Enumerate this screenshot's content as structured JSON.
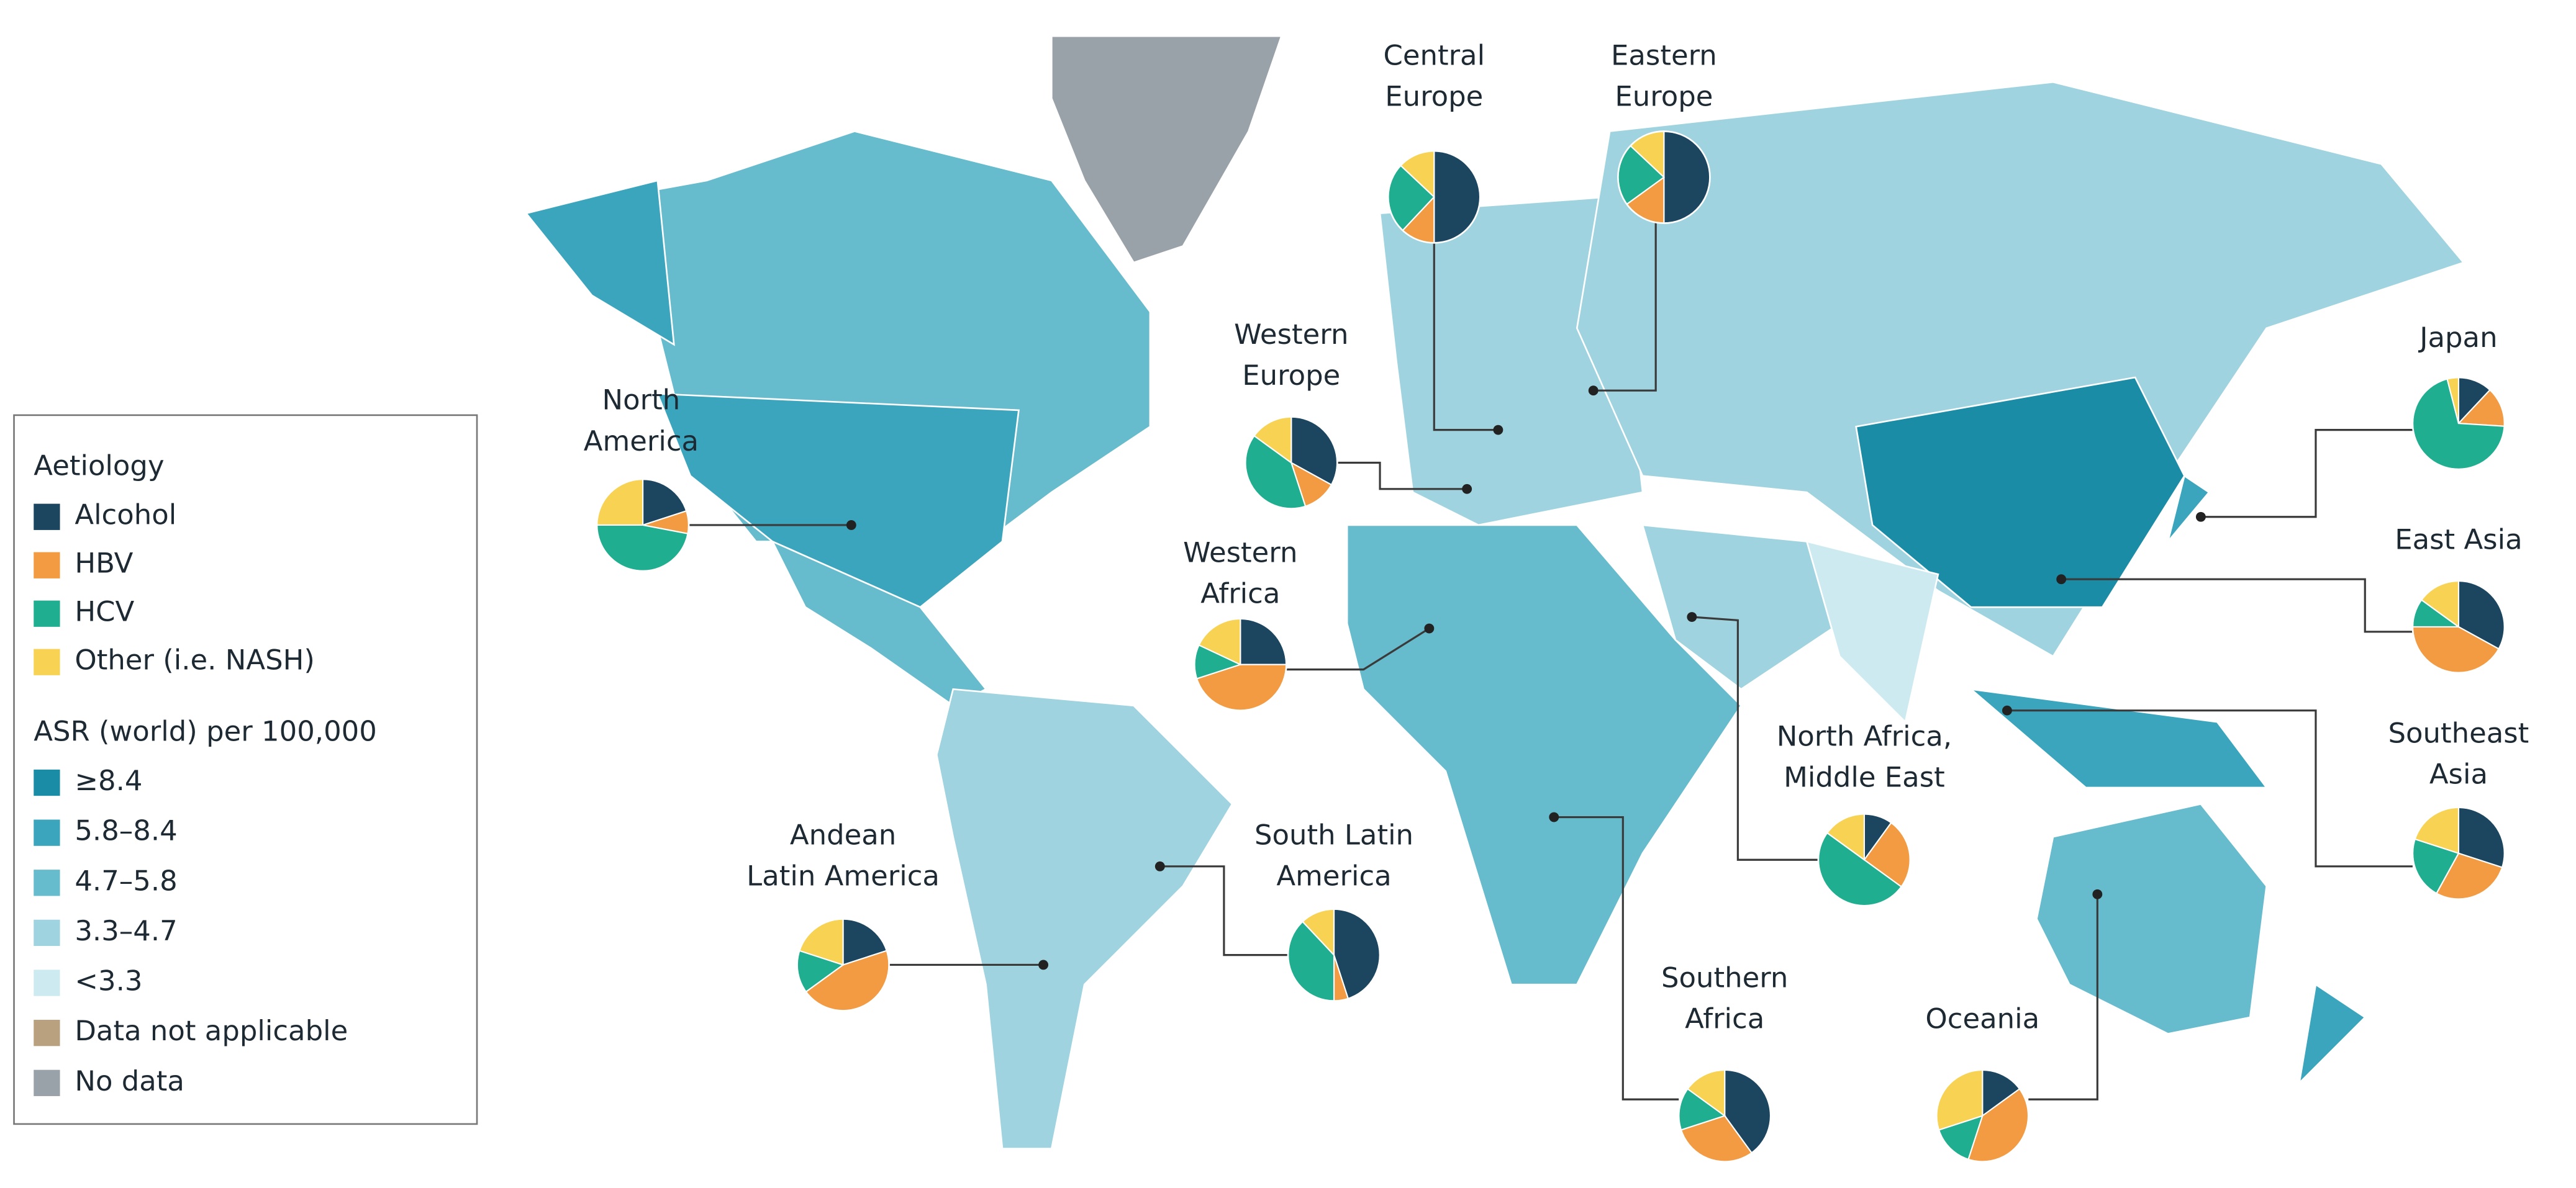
{
  "legend": {
    "aetiology_title": "Aetiology",
    "aetiology": [
      {
        "label": "Alcohol",
        "color": "#1c4660"
      },
      {
        "label": "HBV",
        "color": "#f29b42"
      },
      {
        "label": "HCV",
        "color": "#1fae8f"
      },
      {
        "label": "Other (i.e. NASH)",
        "color": "#f7d253"
      }
    ],
    "asr_title": "ASR (world) per 100,000",
    "asr": [
      {
        "label": "≥8.4",
        "color": "#1b8ca5"
      },
      {
        "label": "5.8–8.4",
        "color": "#3aa5bd"
      },
      {
        "label": "4.7–5.8",
        "color": "#66bbcd"
      },
      {
        "label": "3.3–4.7",
        "color": "#9fd3df"
      },
      {
        "label": "<3.3",
        "color": "#cdeaf1"
      },
      {
        "label": "Data not applicable",
        "color": "#b9a17f"
      },
      {
        "label": "No data",
        "color": "#9aa2a9"
      }
    ]
  },
  "regions": [
    {
      "name": [
        "North",
        "America"
      ],
      "values": [
        20,
        8,
        47,
        25
      ]
    },
    {
      "name": [
        "Central",
        "Europe"
      ],
      "values": [
        50,
        12,
        25,
        13
      ]
    },
    {
      "name": [
        "Eastern",
        "Europe"
      ],
      "values": [
        50,
        15,
        22,
        13
      ]
    },
    {
      "name": [
        "Western",
        "Europe"
      ],
      "values": [
        33,
        12,
        40,
        15
      ]
    },
    {
      "name": [
        "Western",
        "Africa"
      ],
      "values": [
        25,
        45,
        12,
        18
      ]
    },
    {
      "name": [
        "Japan"
      ],
      "values": [
        12,
        14,
        70,
        4
      ]
    },
    {
      "name": [
        "East Asia"
      ],
      "values": [
        33,
        42,
        10,
        15
      ]
    },
    {
      "name": [
        "Southeast",
        "Asia"
      ],
      "values": [
        30,
        28,
        22,
        20
      ]
    },
    {
      "name": [
        "North Africa,",
        "Middle East"
      ],
      "values": [
        10,
        25,
        50,
        15
      ]
    },
    {
      "name": [
        "Andean",
        "Latin America"
      ],
      "values": [
        20,
        45,
        15,
        20
      ]
    },
    {
      "name": [
        "South Latin",
        "America"
      ],
      "values": [
        45,
        5,
        38,
        12
      ]
    },
    {
      "name": [
        "Southern",
        "Africa"
      ],
      "values": [
        40,
        30,
        15,
        15
      ]
    },
    {
      "name": [
        "Oceania"
      ],
      "values": [
        15,
        40,
        15,
        30
      ]
    }
  ]
}
